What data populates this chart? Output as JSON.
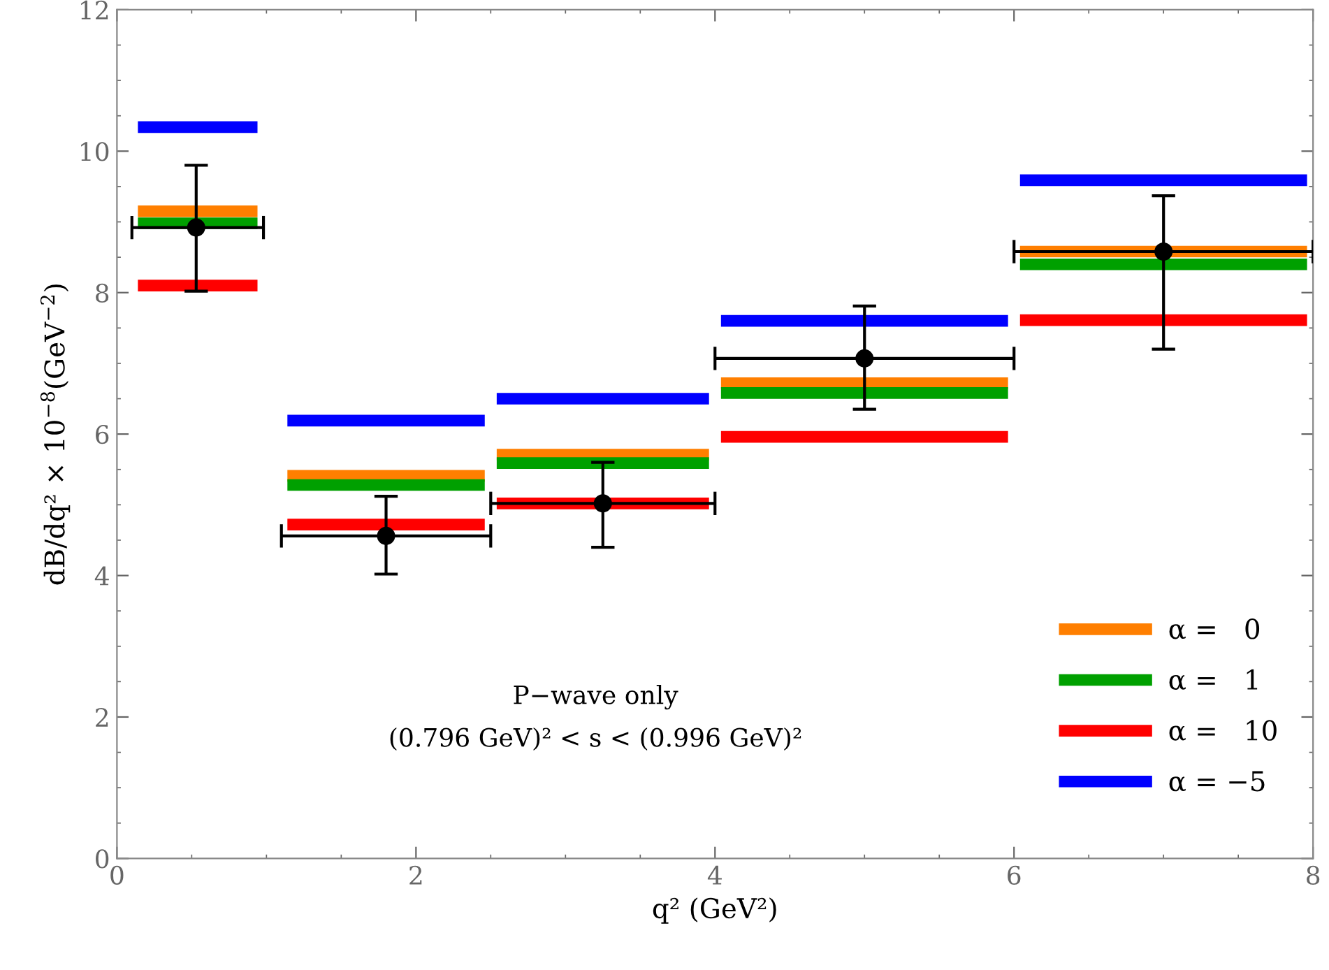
{
  "chart_data": {
    "type": "line",
    "xlabel": "q² (GeV²)",
    "ylabel": "dB/dq² × 10$^{−8}$(GeV$^{−2}$)",
    "xlim": [
      0,
      8
    ],
    "ylim": [
      0,
      12
    ],
    "xticks": [
      0,
      2,
      4,
      6,
      8
    ],
    "yticks": [
      0,
      2,
      4,
      6,
      8,
      10,
      12
    ],
    "grid": false,
    "legend": "bottom right",
    "line_style": "solid",
    "marker": "none",
    "annotations": [
      "P−wave only",
      "(0.796 GeV)² < s < (0.996 GeV)²"
    ],
    "series": [
      {
        "name": "α =   0",
        "color": "#ff7f00",
        "x": [
          0.14,
          0.94,
          1.04,
          1.14,
          2.46,
          2.5,
          2.54,
          3.96,
          4.0,
          4.04,
          5.96,
          6.0,
          6.04,
          7.96
        ],
        "values": [
          9.15,
          9.15,
          null,
          5.41,
          5.41,
          null,
          5.71,
          5.71,
          null,
          6.72,
          6.72,
          null,
          8.58,
          8.58
        ]
      },
      {
        "name": "α =   1",
        "color": "#00a000",
        "x": [
          0.14,
          0.94,
          1.04,
          1.14,
          2.46,
          2.5,
          2.54,
          3.96,
          4.0,
          4.04,
          5.96,
          6.0,
          6.04,
          7.96
        ],
        "values": [
          8.98,
          8.98,
          null,
          5.28,
          5.28,
          null,
          5.59,
          5.59,
          null,
          6.58,
          6.58,
          null,
          8.4,
          8.4
        ]
      },
      {
        "name": "α =   10",
        "color": "#ff0000",
        "x": [
          0.14,
          0.94,
          1.04,
          1.14,
          2.46,
          2.5,
          2.54,
          3.96,
          4.0,
          4.04,
          5.96,
          6.0,
          6.04,
          7.96
        ],
        "values": [
          8.1,
          8.1,
          null,
          4.72,
          4.72,
          null,
          5.02,
          5.02,
          null,
          5.96,
          5.96,
          null,
          7.61,
          7.61
        ]
      },
      {
        "name": "α = −5",
        "color": "#0000ff",
        "x": [
          0.14,
          0.94,
          1.04,
          1.14,
          2.46,
          2.5,
          2.54,
          3.96,
          4.0,
          4.04,
          5.96,
          6.0,
          6.04,
          7.96
        ],
        "values": [
          10.34,
          10.34,
          null,
          6.19,
          6.19,
          null,
          6.5,
          6.5,
          null,
          7.6,
          7.6,
          null,
          9.59,
          9.59
        ]
      },
      {
        "type": "scatter",
        "color": "#000000",
        "marker": "circle",
        "x": [
          0.53,
          1.8,
          3.25,
          5.0,
          7.0
        ],
        "values": [
          8.92,
          4.56,
          5.02,
          7.07,
          8.58
        ],
        "errors": [
          [
            8.02,
            9.8
          ],
          [
            4.02,
            5.12
          ],
          [
            4.4,
            5.6
          ],
          [
            6.35,
            7.81
          ],
          [
            7.2,
            9.37
          ]
        ],
        "xerrors": [
          [
            0.1,
            0.98
          ],
          [
            1.1,
            2.5
          ],
          [
            2.5,
            4.0
          ],
          [
            4.0,
            6.0
          ],
          [
            6.0,
            8.0
          ]
        ]
      }
    ]
  }
}
